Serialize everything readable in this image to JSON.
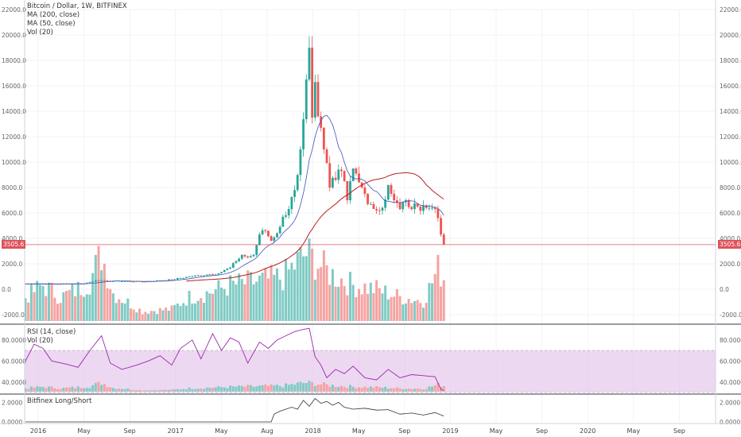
{
  "legend_main": [
    "Bitcoin / Dollar, 1W, BITFINEX",
    "MA (200, close)",
    "MA (50, close)",
    "Vol (20)"
  ],
  "legend_rsi": [
    "RSI (14, close)",
    "Vol (20)"
  ],
  "legend_ls": [
    "Bitfinex Long/Short"
  ],
  "price_tag": "3505.6",
  "colors": {
    "up": "#26a69a",
    "down": "#ef5350",
    "ma200": "#b71c1c",
    "ma50": "#3f51b5",
    "rsi": "#9c27b0",
    "rsi_band": "#e1bee7",
    "ls": "#333333",
    "price_line": "#e0525b"
  },
  "chart_data": [
    {
      "type": "candlestick",
      "title": "Bitcoin / Dollar, 1W, BITFINEX",
      "ylim": [
        -2500,
        22000
      ],
      "yticks": [
        "22000.0",
        "20000.0",
        "18000.0",
        "16000.0",
        "14000.0",
        "12000.0",
        "10000.0",
        "8000.0",
        "6000.0",
        "4000.0",
        "2000.0",
        "0.0",
        "-2000.0"
      ],
      "x_labels": [
        "2016",
        "May",
        "Sep",
        "2017",
        "May",
        "Aug",
        "2018",
        "May",
        "Sep",
        "2019",
        "May",
        "Sep",
        "2020",
        "May",
        "Sep"
      ],
      "last_price": 3505.6,
      "close_anchors": [
        {
          "w": 0,
          "c": 430
        },
        {
          "w": 10,
          "c": 420
        },
        {
          "w": 20,
          "c": 440
        },
        {
          "w": 24,
          "c": 700
        },
        {
          "w": 28,
          "c": 650
        },
        {
          "w": 40,
          "c": 600
        },
        {
          "w": 50,
          "c": 750
        },
        {
          "w": 56,
          "c": 1000
        },
        {
          "w": 62,
          "c": 1150
        },
        {
          "w": 66,
          "c": 1250
        },
        {
          "w": 70,
          "c": 1700
        },
        {
          "w": 72,
          "c": 2200
        },
        {
          "w": 74,
          "c": 2700
        },
        {
          "w": 76,
          "c": 2500
        },
        {
          "w": 78,
          "c": 2700
        },
        {
          "w": 80,
          "c": 4300
        },
        {
          "w": 82,
          "c": 4600
        },
        {
          "w": 84,
          "c": 3800
        },
        {
          "w": 86,
          "c": 4400
        },
        {
          "w": 88,
          "c": 5700
        },
        {
          "w": 90,
          "c": 6300
        },
        {
          "w": 92,
          "c": 7800
        },
        {
          "w": 94,
          "c": 11000
        },
        {
          "w": 96,
          "c": 16500
        },
        {
          "w": 97,
          "c": 19000
        },
        {
          "w": 98,
          "c": 13500
        },
        {
          "w": 99,
          "c": 16300
        },
        {
          "w": 100,
          "c": 13600
        },
        {
          "w": 102,
          "c": 11000
        },
        {
          "w": 104,
          "c": 8000
        },
        {
          "w": 106,
          "c": 8600
        },
        {
          "w": 108,
          "c": 9300
        },
        {
          "w": 110,
          "c": 7000
        },
        {
          "w": 112,
          "c": 9500
        },
        {
          "w": 114,
          "c": 8400
        },
        {
          "w": 116,
          "c": 7500
        },
        {
          "w": 118,
          "c": 6700
        },
        {
          "w": 120,
          "c": 6200
        },
        {
          "w": 122,
          "c": 6400
        },
        {
          "w": 124,
          "c": 8200
        },
        {
          "w": 126,
          "c": 7000
        },
        {
          "w": 128,
          "c": 6300
        },
        {
          "w": 130,
          "c": 7000
        },
        {
          "w": 132,
          "c": 6300
        },
        {
          "w": 134,
          "c": 6500
        },
        {
          "w": 136,
          "c": 6600
        },
        {
          "w": 138,
          "c": 6400
        },
        {
          "w": 140,
          "c": 6300
        },
        {
          "w": 141,
          "c": 5600
        },
        {
          "w": 142,
          "c": 4300
        },
        {
          "w": 143,
          "c": 3505.6
        }
      ],
      "volume_anchors": [
        {
          "w": 0,
          "v": 0.3
        },
        {
          "w": 6,
          "v": 0.45
        },
        {
          "w": 12,
          "v": 0.3
        },
        {
          "w": 18,
          "v": 0.4
        },
        {
          "w": 22,
          "v": 0.5
        },
        {
          "w": 26,
          "v": 0.85
        },
        {
          "w": 30,
          "v": 0.35
        },
        {
          "w": 40,
          "v": 0.12
        },
        {
          "w": 50,
          "v": 0.15
        },
        {
          "w": 56,
          "v": 0.3
        },
        {
          "w": 62,
          "v": 0.35
        },
        {
          "w": 70,
          "v": 0.45
        },
        {
          "w": 80,
          "v": 0.5
        },
        {
          "w": 88,
          "v": 0.55
        },
        {
          "w": 96,
          "v": 0.85
        },
        {
          "w": 104,
          "v": 0.6
        },
        {
          "w": 112,
          "v": 0.45
        },
        {
          "w": 120,
          "v": 0.4
        },
        {
          "w": 128,
          "v": 0.3
        },
        {
          "w": 136,
          "v": 0.25
        },
        {
          "w": 141,
          "v": 0.65
        },
        {
          "w": 143,
          "v": 0.55
        }
      ]
    },
    {
      "type": "line",
      "title": "RSI (14, close)",
      "ylim": [
        30,
        92
      ],
      "yticks": [
        "80.0000",
        "60.0000",
        "40.0000"
      ],
      "band": [
        30,
        70
      ],
      "points": [
        {
          "w": 0,
          "v": 60
        },
        {
          "w": 3,
          "v": 76
        },
        {
          "w": 6,
          "v": 72
        },
        {
          "w": 9,
          "v": 60
        },
        {
          "w": 14,
          "v": 57
        },
        {
          "w": 18,
          "v": 54
        },
        {
          "w": 22,
          "v": 70
        },
        {
          "w": 26,
          "v": 84
        },
        {
          "w": 29,
          "v": 58
        },
        {
          "w": 33,
          "v": 52
        },
        {
          "w": 38,
          "v": 56
        },
        {
          "w": 42,
          "v": 60
        },
        {
          "w": 46,
          "v": 65
        },
        {
          "w": 50,
          "v": 56
        },
        {
          "w": 53,
          "v": 72
        },
        {
          "w": 57,
          "v": 80
        },
        {
          "w": 60,
          "v": 62
        },
        {
          "w": 64,
          "v": 86
        },
        {
          "w": 67,
          "v": 70
        },
        {
          "w": 70,
          "v": 82
        },
        {
          "w": 73,
          "v": 78
        },
        {
          "w": 76,
          "v": 58
        },
        {
          "w": 80,
          "v": 78
        },
        {
          "w": 83,
          "v": 72
        },
        {
          "w": 86,
          "v": 80
        },
        {
          "w": 89,
          "v": 84
        },
        {
          "w": 92,
          "v": 88
        },
        {
          "w": 95,
          "v": 90
        },
        {
          "w": 97,
          "v": 91
        },
        {
          "w": 99,
          "v": 64
        },
        {
          "w": 101,
          "v": 56
        },
        {
          "w": 103,
          "v": 44
        },
        {
          "w": 106,
          "v": 52
        },
        {
          "w": 109,
          "v": 48
        },
        {
          "w": 112,
          "v": 55
        },
        {
          "w": 116,
          "v": 44
        },
        {
          "w": 120,
          "v": 42
        },
        {
          "w": 124,
          "v": 52
        },
        {
          "w": 128,
          "v": 44
        },
        {
          "w": 132,
          "v": 47
        },
        {
          "w": 136,
          "v": 46
        },
        {
          "w": 140,
          "v": 45
        },
        {
          "w": 142,
          "v": 33
        },
        {
          "w": 143,
          "v": 32
        }
      ]
    },
    {
      "type": "line",
      "title": "Bitfinex Long/Short",
      "ylim": [
        0,
        2.6
      ],
      "yticks": [
        "2.0000",
        "0.0000"
      ],
      "points": [
        {
          "w": 0,
          "v": 0
        },
        {
          "w": 84,
          "v": 0
        },
        {
          "w": 85,
          "v": 0.8
        },
        {
          "w": 87,
          "v": 1.1
        },
        {
          "w": 89,
          "v": 1.3
        },
        {
          "w": 91,
          "v": 1.5
        },
        {
          "w": 93,
          "v": 1.3
        },
        {
          "w": 95,
          "v": 2.2
        },
        {
          "w": 97,
          "v": 1.6
        },
        {
          "w": 99,
          "v": 2.4
        },
        {
          "w": 101,
          "v": 1.9
        },
        {
          "w": 103,
          "v": 2.1
        },
        {
          "w": 105,
          "v": 1.7
        },
        {
          "w": 107,
          "v": 2.0
        },
        {
          "w": 109,
          "v": 1.5
        },
        {
          "w": 112,
          "v": 1.3
        },
        {
          "w": 116,
          "v": 1.4
        },
        {
          "w": 120,
          "v": 1.2
        },
        {
          "w": 124,
          "v": 1.25
        },
        {
          "w": 128,
          "v": 0.8
        },
        {
          "w": 132,
          "v": 0.9
        },
        {
          "w": 136,
          "v": 0.7
        },
        {
          "w": 140,
          "v": 0.95
        },
        {
          "w": 143,
          "v": 0.6
        }
      ]
    }
  ]
}
